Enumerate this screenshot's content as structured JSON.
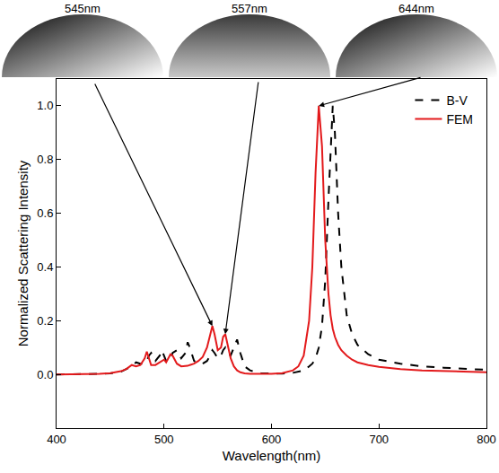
{
  "chart_data": {
    "type": "line",
    "x_label": "Wavelength(nm)",
    "y_label": "Normalized Scattering Intensity",
    "x": [
      400,
      420,
      440,
      450,
      460,
      465,
      470,
      474,
      478,
      482,
      484,
      486,
      488,
      492,
      496,
      498,
      500,
      502,
      504,
      506,
      508,
      512,
      516,
      520,
      522,
      524,
      528,
      532,
      536,
      540,
      543,
      545,
      547,
      550,
      553,
      555,
      557,
      559,
      562,
      565,
      568,
      571,
      575,
      580,
      590,
      600,
      610,
      620,
      625,
      630,
      635,
      638,
      641,
      644,
      647,
      650,
      653,
      655,
      657,
      659,
      662,
      665,
      670,
      675,
      680,
      690,
      700,
      720,
      740,
      760,
      780,
      800
    ],
    "series": [
      {
        "name": "B-V",
        "color": "#000000",
        "line_style": "dash",
        "values": [
          0,
          0,
          0.002,
          0.004,
          0.01,
          0.02,
          0.03,
          0.045,
          0.04,
          0.04,
          0.05,
          0.07,
          0.08,
          0.05,
          0.07,
          0.09,
          0.07,
          0.05,
          0.05,
          0.06,
          0.08,
          0.09,
          0.06,
          0.08,
          0.12,
          0.1,
          0.05,
          0.04,
          0.04,
          0.05,
          0.07,
          0.09,
          0.08,
          0.06,
          0.07,
          0.09,
          0.1,
          0.08,
          0.07,
          0.1,
          0.13,
          0.08,
          0.03,
          0.015,
          0.005,
          0.003,
          0.003,
          0.006,
          0.01,
          0.015,
          0.03,
          0.04,
          0.06,
          0.1,
          0.18,
          0.35,
          0.65,
          0.85,
          1.0,
          0.9,
          0.6,
          0.4,
          0.22,
          0.15,
          0.11,
          0.075,
          0.055,
          0.04,
          0.03,
          0.025,
          0.02,
          0.017
        ]
      },
      {
        "name": "FEM",
        "color": "#e31a1c",
        "line_style": "solid",
        "values": [
          0,
          0,
          0.002,
          0.005,
          0.012,
          0.02,
          0.035,
          0.03,
          0.035,
          0.06,
          0.085,
          0.06,
          0.035,
          0.035,
          0.045,
          0.05,
          0.055,
          0.045,
          0.06,
          0.075,
          0.07,
          0.04,
          0.03,
          0.03,
          0.032,
          0.035,
          0.04,
          0.05,
          0.065,
          0.1,
          0.15,
          0.18,
          0.15,
          0.09,
          0.1,
          0.14,
          0.15,
          0.11,
          0.06,
          0.03,
          0.015,
          0.008,
          0.004,
          0.002,
          0.001,
          0.002,
          0.005,
          0.015,
          0.03,
          0.07,
          0.2,
          0.4,
          0.75,
          1.0,
          0.85,
          0.5,
          0.3,
          0.22,
          0.17,
          0.14,
          0.11,
          0.09,
          0.07,
          0.055,
          0.045,
          0.035,
          0.028,
          0.02,
          0.015,
          0.012,
          0.01,
          0.008
        ]
      }
    ],
    "xlim": [
      400,
      800
    ],
    "xticks": [
      400,
      500,
      600,
      700,
      800
    ],
    "ylim": [
      -0.2,
      1.1
    ],
    "yticks": [
      {
        "value": 0,
        "label": "0.0"
      },
      0.2,
      0.4,
      0.6,
      0.8,
      {
        "value": 1,
        "label": "1.0"
      }
    ],
    "legend": "upper right",
    "grid": false,
    "annotations": [
      {
        "text": "545nm",
        "x": 545,
        "y": 0.18
      },
      {
        "text": "557nm",
        "x": 557,
        "y": 0.15
      },
      {
        "text": "644nm",
        "x": 644,
        "y": 1.0
      }
    ]
  }
}
